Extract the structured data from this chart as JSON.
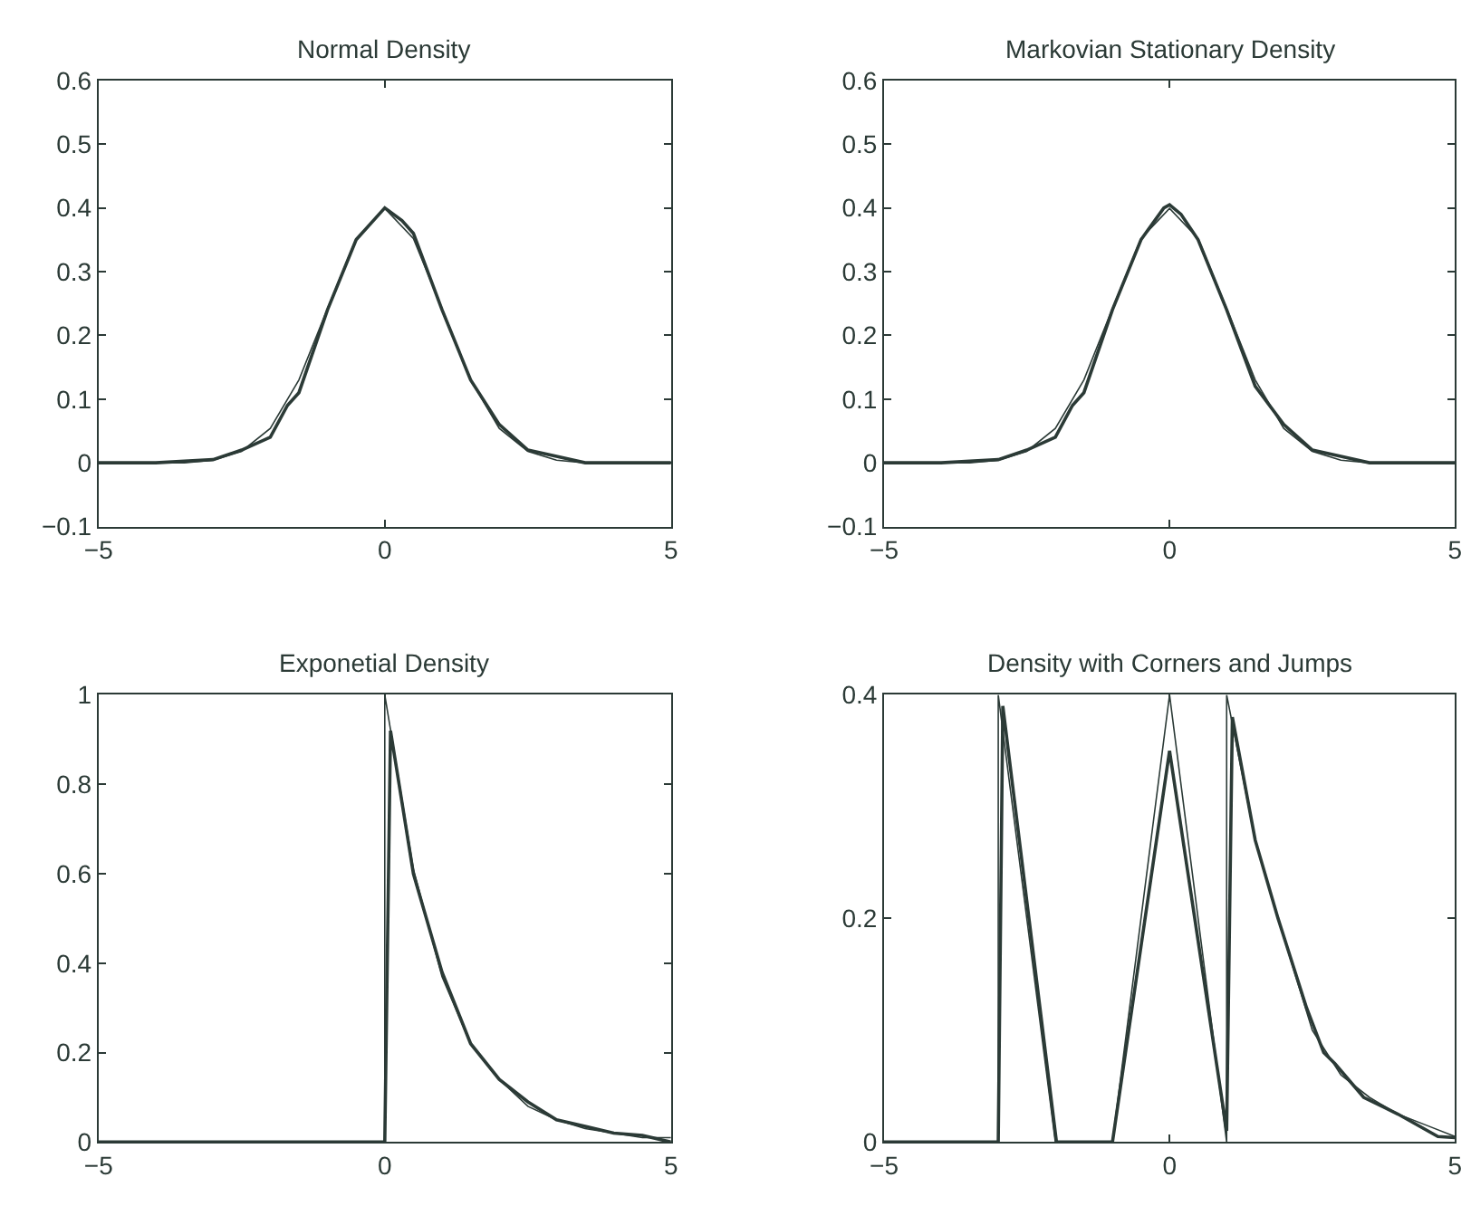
{
  "chart_data": [
    {
      "type": "line",
      "title": "Normal Density",
      "xlim": [
        -5,
        5
      ],
      "xticks": [
        -5,
        0,
        5
      ],
      "ylim": [
        -0.1,
        0.6
      ],
      "yticks": [
        -0.1,
        0,
        0.1,
        0.2,
        0.3,
        0.4,
        0.5,
        0.6
      ],
      "series": [
        {
          "color": "#2b3a36",
          "x": [
            -5,
            -4,
            -3.5,
            -3,
            -2.5,
            -2,
            -1.5,
            -1,
            -0.5,
            0,
            0.5,
            1,
            1.5,
            2,
            2.5,
            3,
            3.5,
            4,
            5
          ],
          "values": [
            0,
            0,
            0,
            0.004,
            0.018,
            0.054,
            0.13,
            0.242,
            0.352,
            0.399,
            0.352,
            0.242,
            0.13,
            0.054,
            0.018,
            0.004,
            0,
            0,
            0
          ]
        },
        {
          "color": "#2b3a36",
          "x": [
            -5,
            -4,
            -3,
            -2.5,
            -2,
            -1.7,
            -1.5,
            -1,
            -0.5,
            0,
            0.3,
            0.5,
            1,
            1.5,
            2,
            2.5,
            3,
            3.5,
            4,
            5
          ],
          "values": [
            0,
            0,
            0.005,
            0.02,
            0.04,
            0.09,
            0.11,
            0.24,
            0.35,
            0.4,
            0.38,
            0.36,
            0.24,
            0.13,
            0.06,
            0.02,
            0.01,
            0,
            0,
            0
          ]
        }
      ]
    },
    {
      "type": "line",
      "title": "Markovian Stationary Density",
      "xlim": [
        -5,
        5
      ],
      "xticks": [
        -5,
        0,
        5
      ],
      "ylim": [
        -0.1,
        0.6
      ],
      "yticks": [
        -0.1,
        0,
        0.1,
        0.2,
        0.3,
        0.4,
        0.5,
        0.6
      ],
      "series": [
        {
          "color": "#2b3a36",
          "x": [
            -5,
            -4,
            -3.5,
            -3,
            -2.5,
            -2,
            -1.5,
            -1,
            -0.5,
            0,
            0.5,
            1,
            1.5,
            2,
            2.5,
            3,
            3.5,
            4,
            5
          ],
          "values": [
            0,
            0,
            0,
            0.004,
            0.018,
            0.054,
            0.13,
            0.242,
            0.352,
            0.399,
            0.352,
            0.242,
            0.13,
            0.054,
            0.018,
            0.004,
            0,
            0,
            0
          ]
        },
        {
          "color": "#2b3a36",
          "x": [
            -5,
            -4,
            -3,
            -2.5,
            -2,
            -1.7,
            -1.5,
            -1,
            -0.5,
            -0.1,
            0,
            0.2,
            0.5,
            1,
            1.5,
            2,
            2.5,
            3,
            3.5,
            4,
            5
          ],
          "values": [
            0,
            0,
            0.005,
            0.02,
            0.04,
            0.09,
            0.11,
            0.24,
            0.35,
            0.4,
            0.405,
            0.39,
            0.35,
            0.24,
            0.12,
            0.06,
            0.02,
            0.01,
            0,
            0,
            0
          ]
        }
      ]
    },
    {
      "type": "line",
      "title": "Exponetial Density",
      "xlim": [
        -5,
        5
      ],
      "xticks": [
        -5,
        0,
        5
      ],
      "ylim": [
        0,
        1
      ],
      "yticks": [
        0,
        0.2,
        0.4,
        0.6,
        0.8,
        1
      ],
      "series": [
        {
          "color": "#2b3a36",
          "x": [
            -5,
            0,
            0,
            0.5,
            1,
            1.5,
            2,
            2.5,
            3,
            3.5,
            4,
            4.5,
            5
          ],
          "values": [
            0,
            0,
            1,
            0.61,
            0.37,
            0.22,
            0.14,
            0.08,
            0.05,
            0.03,
            0.02,
            0.01,
            0.01
          ]
        },
        {
          "color": "#2b3a36",
          "x": [
            -5,
            0,
            0.1,
            0.5,
            1,
            1.5,
            2,
            2.5,
            3,
            3.5,
            4,
            4.5,
            5
          ],
          "values": [
            0,
            0,
            0.92,
            0.6,
            0.38,
            0.22,
            0.14,
            0.09,
            0.05,
            0.035,
            0.02,
            0.015,
            0
          ]
        }
      ]
    },
    {
      "type": "line",
      "title": "Density with Corners and Jumps",
      "xlim": [
        -5,
        5
      ],
      "xticks": [
        -5,
        0,
        5
      ],
      "ylim": [
        0,
        0.4
      ],
      "yticks": [
        0,
        0.2,
        0.4
      ],
      "series": [
        {
          "color": "#2b3a36",
          "x": [
            -5,
            -3,
            -3,
            -2,
            -1,
            0,
            1,
            1,
            1.5,
            1.9,
            2.5,
            3,
            3.5,
            4,
            4.5,
            5
          ],
          "values": [
            0,
            0,
            0.4,
            0,
            0,
            0.4,
            0,
            0.4,
            0.27,
            0.2,
            0.1,
            0.06,
            0.04,
            0.025,
            0.015,
            0.005
          ]
        },
        {
          "color": "#2b3a36",
          "x": [
            -5,
            -3,
            -2.92,
            -1.98,
            -1,
            0,
            1,
            1.1,
            1.5,
            1.9,
            2.4,
            2.7,
            2.9,
            3.4,
            4,
            4.7,
            5
          ],
          "values": [
            0,
            0,
            0.39,
            0,
            0,
            0.35,
            0.01,
            0.38,
            0.27,
            0.2,
            0.12,
            0.08,
            0.07,
            0.04,
            0.025,
            0.005,
            0.004
          ]
        }
      ]
    }
  ]
}
